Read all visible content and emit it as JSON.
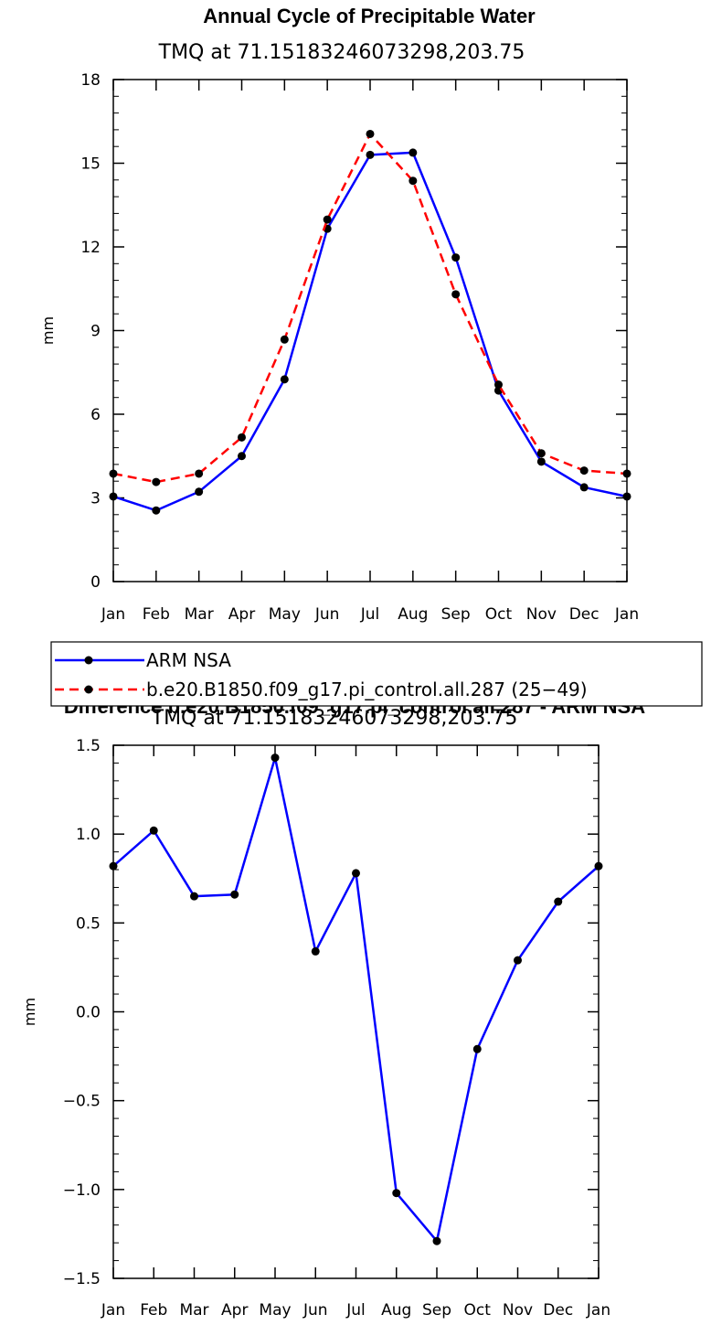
{
  "chart_data": [
    {
      "type": "line",
      "title": "Annual Cycle of Precipitable Water",
      "subtitle": "TMQ at 71.15183246073298,203.75",
      "ylabel": "mm",
      "ylim": [
        0,
        18
      ],
      "yticks": [
        0,
        3,
        6,
        9,
        12,
        15,
        18
      ],
      "yticks_text": [
        "0",
        "3",
        "6",
        "9",
        "12",
        "15",
        "18"
      ],
      "categories": [
        "Jan",
        "Feb",
        "Mar",
        "Apr",
        "May",
        "Jun",
        "Jul",
        "Aug",
        "Sep",
        "Oct",
        "Nov",
        "Dec",
        "Jan"
      ],
      "series": [
        {
          "name": "ARM NSA",
          "color": "#0000ff",
          "dash": "solid",
          "values": [
            3.05,
            2.55,
            3.22,
            4.5,
            7.25,
            12.65,
            15.3,
            15.38,
            11.62,
            6.85,
            4.3,
            3.38,
            3.05
          ]
        },
        {
          "name": "b.e20.B1850.f09_g17.pi_control.all.287 (25−49)",
          "color": "#ff0000",
          "dash": "dashed",
          "values": [
            3.87,
            3.57,
            3.87,
            5.17,
            8.68,
            12.98,
            16.05,
            14.37,
            10.3,
            7.06,
            4.6,
            3.98,
            3.87
          ]
        }
      ],
      "legend_position": "below"
    },
    {
      "type": "line",
      "title": "Difference b.e20.B1850.f09_g17.pi_control.all.287 - ARM NSA",
      "subtitle": "TMQ at 71.15183246073298,203.75",
      "ylabel": "mm",
      "ylim": [
        -1.5,
        1.5
      ],
      "yticks": [
        -1.5,
        -1.0,
        -0.5,
        0.0,
        0.5,
        1.0,
        1.5
      ],
      "yticks_text": [
        "−1.5",
        "−1.0",
        "−0.5",
        "0.0",
        "0.5",
        "1.0",
        "1.5"
      ],
      "categories": [
        "Jan",
        "Feb",
        "Mar",
        "Apr",
        "May",
        "Jun",
        "Jul",
        "Aug",
        "Sep",
        "Oct",
        "Nov",
        "Dec",
        "Jan"
      ],
      "series": [
        {
          "name": "",
          "color": "#0000ff",
          "dash": "solid",
          "values": [
            0.82,
            1.02,
            0.65,
            0.66,
            1.43,
            0.34,
            0.78,
            -1.02,
            -1.29,
            -0.21,
            0.29,
            0.62,
            0.82
          ]
        }
      ]
    }
  ]
}
